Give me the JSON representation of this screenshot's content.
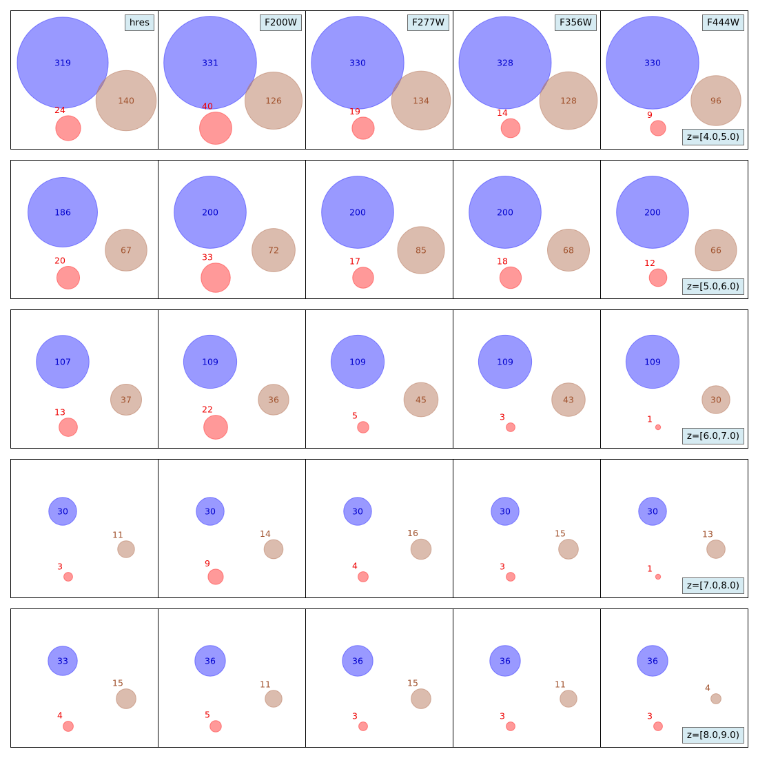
{
  "chart_data": {
    "type": "bubble-grid",
    "filters": [
      "hres",
      "F200W",
      "F277W",
      "F356W",
      "F444W"
    ],
    "redshift_bins": [
      "z=[4.0,5.0)",
      "z=[5.0,6.0)",
      "z=[6.0,7.0)",
      "z=[7.0,8.0)",
      "z=[8.0,9.0)"
    ],
    "series_colors": {
      "blue": "#3333ff",
      "brown": "#b87a5e",
      "red": "#ff3333"
    },
    "label_colors": {
      "blue": "#0000cc",
      "brown": "#a0522d",
      "red": "#ee0000"
    },
    "values": {
      "blue": [
        [
          319,
          331,
          330,
          328,
          330
        ],
        [
          186,
          200,
          200,
          200,
          200
        ],
        [
          107,
          109,
          109,
          109,
          109
        ],
        [
          30,
          30,
          30,
          30,
          30
        ],
        [
          33,
          36,
          36,
          36,
          36
        ]
      ],
      "brown": [
        [
          140,
          126,
          134,
          128,
          96
        ],
        [
          67,
          72,
          85,
          68,
          66
        ],
        [
          37,
          36,
          45,
          43,
          30
        ],
        [
          11,
          14,
          16,
          15,
          13
        ],
        [
          15,
          11,
          15,
          11,
          4
        ]
      ],
      "red": [
        [
          24,
          40,
          19,
          14,
          9
        ],
        [
          20,
          33,
          17,
          18,
          12
        ],
        [
          13,
          22,
          5,
          3,
          1
        ],
        [
          3,
          9,
          4,
          3,
          1
        ],
        [
          4,
          5,
          3,
          3,
          3
        ]
      ]
    }
  }
}
